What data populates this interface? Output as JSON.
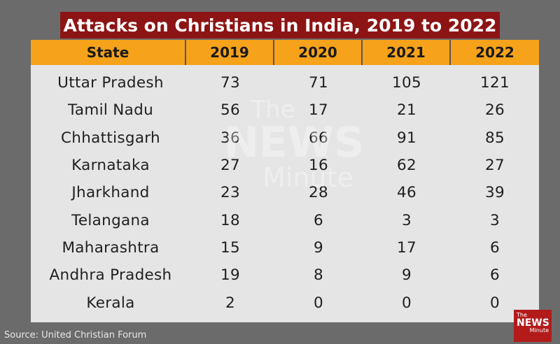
{
  "title": "Attacks on Christians in India, 2019 to 2022",
  "source": "Source: United Christian Forum",
  "watermark": {
    "the": "The",
    "news": "NEWS",
    "minute": "Minute"
  },
  "logo": {
    "the": "The",
    "news": "NEWS",
    "minute": "Minute"
  },
  "colors": {
    "background": "#6b6b6b",
    "title_bg": "#8c1414",
    "header_bg": "#f6a21a",
    "table_bg": "#e5e5e5",
    "logo_bg": "#b31b1b"
  },
  "chart_data": {
    "type": "table",
    "title": "Attacks on Christians in India, 2019 to 2022",
    "columns": [
      "State",
      "2019",
      "2020",
      "2021",
      "2022"
    ],
    "rows": [
      [
        "Uttar Pradesh",
        "73",
        "71",
        "105",
        "121"
      ],
      [
        "Tamil Nadu",
        "56",
        "17",
        "21",
        "26"
      ],
      [
        "Chhattisgarh",
        "36",
        "66",
        "91",
        "85"
      ],
      [
        "Karnataka",
        "27",
        "16",
        "62",
        "27"
      ],
      [
        "Jharkhand",
        "23",
        "28",
        "46",
        "39"
      ],
      [
        "Telangana",
        "18",
        "6",
        "3",
        "3"
      ],
      [
        "Maharashtra",
        "15",
        "9",
        "17",
        "6"
      ],
      [
        "Andhra Pradesh",
        "19",
        "8",
        "9",
        "6"
      ],
      [
        "Kerala",
        "2",
        "0",
        "0",
        "0"
      ]
    ]
  }
}
